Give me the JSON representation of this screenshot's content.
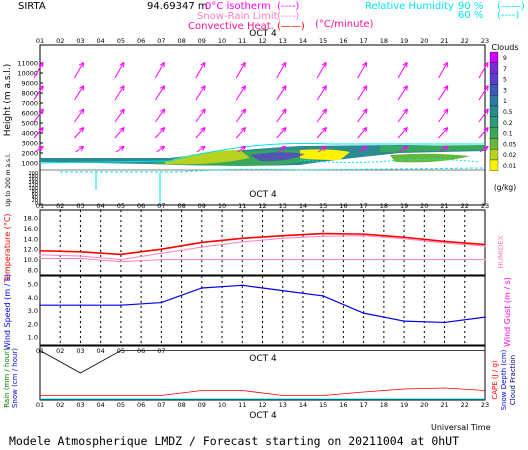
{
  "header": {
    "station": "SIRTA",
    "elevation": "94.69347 m",
    "legend_labels": [
      "0°C isotherm",
      "Snow-Rain Limit",
      "Convective Heat."
    ],
    "legend_unit": "(°C/minute)",
    "humidity_label": "Relative Humidity",
    "humidity_levels": [
      "90 %",
      "60 %"
    ]
  },
  "hours_top": [
    "01",
    "02",
    "03",
    "04",
    "05",
    "06",
    "07",
    "08",
    "09",
    "10",
    "11",
    "12",
    "13",
    "14",
    "15",
    "16",
    "17",
    "18",
    "19",
    "20",
    "21",
    "22",
    "23"
  ],
  "hours_mid": [
    "01",
    "02",
    "03",
    "04",
    "05",
    "06",
    "07",
    "08",
    "09",
    "10",
    "11",
    "12",
    "13",
    "14",
    "15",
    "16",
    "17",
    "18",
    "19",
    "20",
    "21",
    "22",
    "23"
  ],
  "date_label": "OCT 4",
  "colors": {
    "magenta": "#ff00ff",
    "cyan": "#00e5ee",
    "red": "#ff0000",
    "blue": "#0000ee",
    "pink": "#ff80c0",
    "green": "#008000",
    "navy": "#000080"
  },
  "chart_data": [
    {
      "type": "heatmap",
      "name": "height",
      "ylabel": "Height (m a.s.l.)",
      "ylabel_lower": "Up to 200 m a.s.l.",
      "y_ticks_upper": [
        "11000",
        "10000",
        "9000",
        "8000",
        "7000",
        "6000",
        "5000",
        "4000",
        "3000",
        "2000",
        "1000"
      ],
      "y_ticks_lower": [
        "200",
        "180",
        "160",
        "140",
        "120",
        "100",
        "80",
        "60",
        "40",
        "20",
        "0"
      ],
      "cloud_legend": {
        "title": "Clouds",
        "unit": "(g/kg)",
        "levels": [
          "9",
          "7",
          "5",
          "3",
          "1",
          "0.5",
          "0.2",
          "0.1",
          "0.05",
          "0.02",
          "0.01"
        ],
        "colors": [
          "#cc00ff",
          "#7a2cd6",
          "#5a40c8",
          "#3a5ab6",
          "#2f78a8",
          "#2a8c92",
          "#2f9a78",
          "#3aa85a",
          "#66b838",
          "#b8d21e",
          "#fff200"
        ]
      },
      "wind_arrow_rows_m": [
        10800,
        9000,
        7200,
        5400,
        3600,
        2000
      ]
    },
    {
      "type": "line",
      "name": "temperature",
      "ylabel": "Temperature (°C)",
      "ylabel_right": "HUMIDEX",
      "ylim": [
        8,
        18
      ],
      "y_ticks": [
        "18.0",
        "16.0",
        "14.0",
        "12.0",
        "10.0",
        "8.0"
      ],
      "x": [
        1,
        3,
        5,
        7,
        9,
        11,
        13,
        15,
        17,
        19,
        21,
        23
      ],
      "series": [
        {
          "values": [
            11.7,
            11.5,
            11.0,
            12.0,
            13.3,
            14.1,
            14.6,
            15.0,
            14.9,
            14.3,
            13.5,
            12.9
          ]
        },
        {
          "values": [
            10.9,
            10.7,
            10.0,
            11.2,
            12.4,
            13.4,
            14.1,
            14.5,
            14.6,
            14.0,
            13.2,
            12.6
          ]
        },
        {
          "values": [
            10.2,
            10.2,
            9.6,
            10.0,
            10.0,
            10.0,
            10.0,
            10.0,
            10.0,
            10.0,
            10.0,
            10.0
          ]
        }
      ]
    },
    {
      "type": "line",
      "name": "wind",
      "ylabel": "Wind Speed (m / s)",
      "ylabel_right": "Wind Gust (m / s)",
      "ylim": [
        1.0,
        5.0
      ],
      "y_ticks": [
        "5.0",
        "4.0",
        "3.0",
        "2.0",
        "1.0"
      ],
      "x": [
        1,
        3,
        5,
        7,
        9,
        11,
        13,
        15,
        17,
        19,
        21,
        23
      ],
      "series": [
        {
          "values": [
            3.4,
            3.4,
            3.4,
            3.6,
            4.7,
            4.9,
            4.5,
            4.1,
            2.8,
            2.2,
            2.1,
            2.5
          ]
        }
      ]
    },
    {
      "type": "line",
      "name": "rain",
      "ylabel": "Rain (mm / hour)",
      "ylabel_2": "Snow (cm / hour)",
      "ylabel_right": "CAPE (J / g)",
      "ylabel_right_2": "Snow Depth (cm)",
      "ylabel_right_3": "Cloud Fraction",
      "xlabel": "Universal Time",
      "x": [
        1,
        3,
        5,
        7,
        9,
        11,
        13,
        15,
        17,
        19,
        21,
        23
      ],
      "series": [
        {
          "values": [
            0.05,
            0.05,
            0.05,
            0.05,
            0.15,
            0.15,
            0.05,
            0.05,
            0.12,
            0.18,
            0.2,
            0.15
          ]
        },
        {
          "values": [
            0.95,
            0.5,
            0.95,
            0.95,
            0.95,
            0.95,
            0.95,
            0.95,
            0.95,
            0.95,
            0.95,
            0.95
          ]
        }
      ]
    }
  ],
  "footer": "Modele Atmospherique LMDZ / Forecast starting on 20211004 at 0hUT"
}
